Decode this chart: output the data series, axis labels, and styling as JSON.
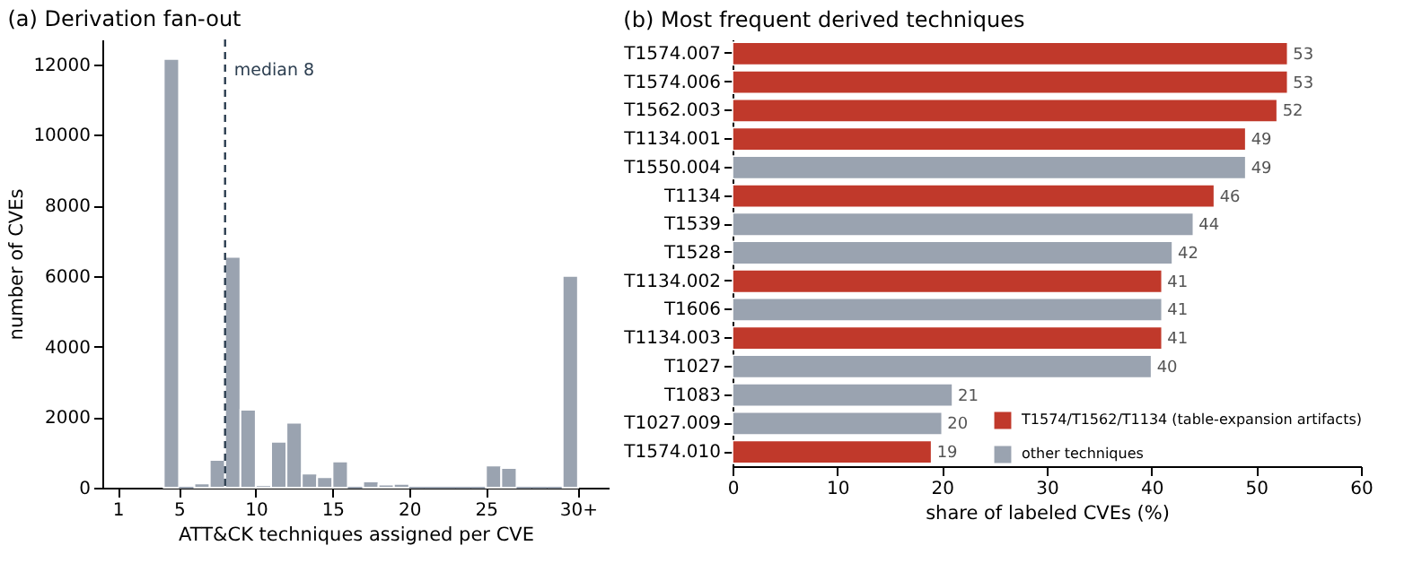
{
  "chart_data": [
    {
      "type": "histogram",
      "title": "(a) Derivation fan-out",
      "xlabel": "ATT&CK techniques assigned per CVE",
      "ylabel": "number of CVEs",
      "color": "#9aa3b0",
      "bins": [
        4,
        5,
        6,
        7,
        8,
        9,
        10,
        11,
        12,
        13,
        14,
        15,
        16,
        17,
        18,
        19,
        20,
        21,
        22,
        23,
        24,
        25,
        26,
        27,
        28,
        29,
        30,
        31
      ],
      "values": [
        12150,
        0,
        120,
        790,
        6540,
        2210,
        70,
        1300,
        1840,
        400,
        300,
        740,
        0,
        175,
        90,
        105,
        0,
        0,
        0,
        0,
        0,
        630,
        560,
        0,
        0,
        0,
        6000
      ],
      "xlim": [
        0,
        33
      ],
      "xticks": [
        1,
        5,
        10,
        15,
        20,
        25,
        {
          "value": 31,
          "label": "30+"
        }
      ],
      "ylim": [
        0,
        12700
      ],
      "yticks": [
        0,
        2000,
        4000,
        6000,
        8000,
        10000,
        12000
      ],
      "ref_lines": [
        {
          "axis": "x",
          "value": 8,
          "label": "median 8",
          "color": "#2c3e50",
          "line_style": "dashed"
        }
      ],
      "grid": false
    },
    {
      "type": "bar",
      "orientation": "horizontal",
      "title": "(b) Most frequent derived techniques",
      "xlabel": "share of labeled CVEs (%)",
      "categories": [
        "T1574.007",
        "T1574.006",
        "T1562.003",
        "T1134.001",
        "T1550.004",
        "T1134",
        "T1539",
        "T1528",
        "T1134.002",
        "T1606",
        "T1134.003",
        "T1027",
        "T1083",
        "T1027.009",
        "T1574.010"
      ],
      "series": [
        {
          "name": "T1574/T1562/T1134 (table-expansion artifacts)",
          "color": "#c0392b",
          "values": [
            53,
            53,
            52,
            49,
            null,
            46,
            null,
            null,
            41,
            null,
            41,
            null,
            null,
            null,
            19
          ]
        },
        {
          "name": "other techniques",
          "color": "#9aa3b0",
          "values": [
            null,
            null,
            null,
            null,
            49,
            null,
            44,
            42,
            null,
            41,
            null,
            40,
            21,
            20,
            null
          ]
        }
      ],
      "data_labels": true,
      "legend": "bottom right",
      "xlim": [
        0,
        60
      ],
      "xticks": [
        0,
        10,
        20,
        30,
        40,
        50,
        60
      ],
      "grid": false
    }
  ]
}
